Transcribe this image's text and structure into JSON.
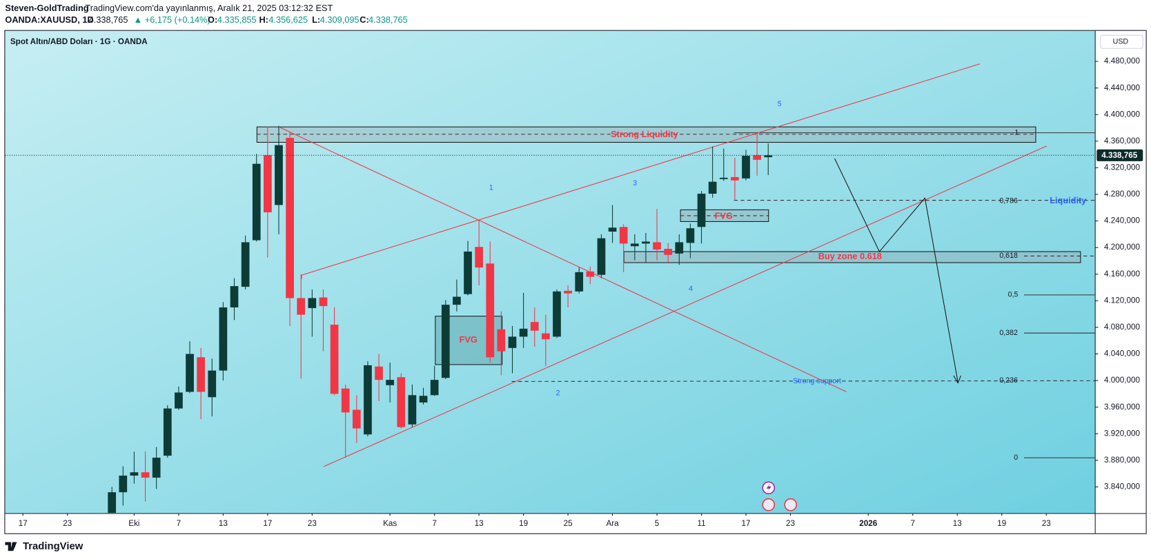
{
  "header": {
    "author": "Steven-GoldTrading",
    "published": "TradingView.com'da yayınlanmış, Aralık 21, 2025 03:12:32 EST",
    "symbol": "OANDA:XAUUSD, 1D",
    "last": "4.338,765",
    "change": "▲ +6,175 (+0.14%)",
    "ohlc_labels": [
      "O:",
      "H:",
      "L:",
      "C:"
    ],
    "ohlc_values": [
      "4.335,855",
      "4.356,625",
      "4.309,095",
      "4.338,765"
    ]
  },
  "chart_data": {
    "type": "candlestick",
    "title": "Spot Altın/ABD Doları · 1G · OANDA",
    "currency": "USD",
    "up_color": "#0d3b36",
    "down_color": "#f23645",
    "open": [
      3801000,
      3832000,
      3857000,
      3862000,
      3854000,
      3887000,
      3958000,
      3983000,
      4035000,
      3975000,
      4015000,
      4110000,
      4141000,
      4211000,
      4339000,
      4264000,
      4365000,
      4124000,
      4109000,
      4125000,
      4084000,
      3988000,
      3956000,
      3919000,
      4021000,
      3993000,
      4005000,
      3934000,
      3967000,
      3978000,
      4004000,
      4114000,
      4130000,
      4201000,
      4176000,
      4077000,
      4049000,
      4066000,
      4088000,
      4071000,
      4066000,
      4135000,
      4134000,
      4164000,
      4159000,
      4224000,
      4231000,
      4202000,
      4206000,
      4208000,
      4198000,
      4191000,
      4207000,
      4231000,
      4281000,
      4303000,
      4306000,
      4304000,
      4339000,
      4335855
    ],
    "high": [
      3840000,
      3871000,
      3893000,
      3893000,
      3900000,
      3963000,
      3991000,
      4059000,
      4049000,
      4033000,
      4118000,
      4154000,
      4218000,
      4341000,
      4382000,
      4383000,
      4374000,
      4160000,
      4137000,
      4137000,
      4110000,
      3994000,
      3978000,
      4029000,
      4040000,
      4027000,
      4011000,
      3994000,
      3989000,
      4022000,
      4121000,
      4152000,
      4210000,
      4242000,
      4209000,
      4104000,
      4082000,
      4132000,
      4110000,
      4099000,
      4137000,
      4143000,
      4170000,
      4171000,
      4220000,
      4264000,
      4235000,
      4220000,
      4222000,
      4258000,
      4207000,
      4220000,
      4236000,
      4285000,
      4352000,
      4349000,
      4335000,
      4347000,
      4374000,
      4356625
    ],
    "low": [
      3801000,
      3812000,
      3845000,
      3818000,
      3837000,
      3884000,
      3956000,
      3981000,
      3942000,
      3946000,
      4000000,
      4091000,
      4137000,
      4209000,
      4185000,
      4220000,
      4082000,
      4003000,
      4066000,
      4044000,
      3978000,
      3884000,
      3906000,
      3916000,
      3969000,
      3967000,
      3928000,
      3930000,
      3964000,
      3977000,
      4002000,
      4104000,
      4128000,
      4143000,
      4027000,
      4008000,
      4011000,
      4049000,
      4051000,
      4022000,
      4064000,
      4110000,
      4131000,
      4145000,
      4154000,
      4207000,
      4163000,
      4181000,
      4178000,
      4181000,
      4176000,
      4174000,
      4184000,
      4206000,
      4275000,
      4300000,
      4272000,
      4301000,
      4308000,
      4309095
    ],
    "close": [
      3832000,
      3857000,
      3862000,
      3854000,
      3884000,
      3958000,
      3982000,
      4040000,
      3983000,
      4015000,
      4110000,
      4142000,
      4208000,
      4326000,
      4253000,
      4354000,
      4124000,
      4099000,
      4124000,
      4112000,
      3980000,
      3952000,
      3928000,
      4023000,
      4001000,
      4001000,
      3930000,
      3978000,
      3977000,
      4001000,
      4114000,
      4126000,
      4194000,
      4170000,
      4035000,
      4044000,
      4066000,
      4078000,
      4075000,
      4062000,
      4134000,
      4131000,
      4163000,
      4156000,
      4214000,
      4230000,
      4206000,
      4206000,
      4209000,
      4197000,
      4189000,
      4208000,
      4229000,
      4281000,
      4299000,
      4305000,
      4301000,
      4338000,
      4332000,
      4338765
    ],
    "ylim": [
      3800000,
      4526000
    ],
    "yticks": [
      {
        "value": 3840000,
        "label": "3.840,000"
      },
      {
        "value": 3880000,
        "label": "3.880,000"
      },
      {
        "value": 3920000,
        "label": "3.920,000"
      },
      {
        "value": 3960000,
        "label": "3.960,000"
      },
      {
        "value": 4000000,
        "label": "4.000,000"
      },
      {
        "value": 4040000,
        "label": "4.040,000"
      },
      {
        "value": 4080000,
        "label": "4.080,000"
      },
      {
        "value": 4120000,
        "label": "4.120,000"
      },
      {
        "value": 4160000,
        "label": "4.160,000"
      },
      {
        "value": 4200000,
        "label": "4.200,000"
      },
      {
        "value": 4240000,
        "label": "4.240,000"
      },
      {
        "value": 4280000,
        "label": "4.280,000"
      },
      {
        "value": 4320000,
        "label": "4.320,000"
      },
      {
        "value": 4360000,
        "label": "4.360,000"
      },
      {
        "value": 4400000,
        "label": "4.400,000"
      },
      {
        "value": 4440000,
        "label": "4.440,000"
      },
      {
        "value": 4480000,
        "label": "4.480,000"
      }
    ],
    "xlim": [
      -9.6,
      88.4
    ],
    "xticks": [
      {
        "value": -8,
        "label": "17"
      },
      {
        "value": -4,
        "label": "23"
      },
      {
        "value": 2,
        "label": "Eki"
      },
      {
        "value": 6,
        "label": "7"
      },
      {
        "value": 10,
        "label": "13"
      },
      {
        "value": 14,
        "label": "17"
      },
      {
        "value": 18,
        "label": "23"
      },
      {
        "value": 25,
        "label": "Kas"
      },
      {
        "value": 29,
        "label": "7"
      },
      {
        "value": 33,
        "label": "13"
      },
      {
        "value": 37,
        "label": "19"
      },
      {
        "value": 41,
        "label": "25"
      },
      {
        "value": 45,
        "label": "Ara"
      },
      {
        "value": 49,
        "label": "5"
      },
      {
        "value": 53,
        "label": "11"
      },
      {
        "value": 57,
        "label": "17"
      },
      {
        "value": 61,
        "label": "23"
      },
      {
        "value": 68,
        "label": "2026"
      },
      {
        "value": 72,
        "label": "7"
      },
      {
        "value": 76,
        "label": "13"
      },
      {
        "value": 80,
        "label": "19"
      },
      {
        "value": 84,
        "label": "23"
      }
    ],
    "last_price": {
      "value": 4338765,
      "label": "4.338,765"
    },
    "grid": false
  },
  "annotations": {
    "strong_liquidity": "Strong Liquidity",
    "fvg_upper": "FVG",
    "fvg_lower": "FVG",
    "buy_zone": "Buy zone 0.618",
    "strong_support": "Strong support",
    "liquidity": "Liquidity",
    "fib_levels": [
      "1",
      "0,786",
      "0,618",
      "0,5",
      "0,382",
      "0,236",
      "0"
    ],
    "waves": [
      "1",
      "2",
      "3",
      "4",
      "5"
    ]
  },
  "footer": {
    "brand": "TradingView"
  }
}
